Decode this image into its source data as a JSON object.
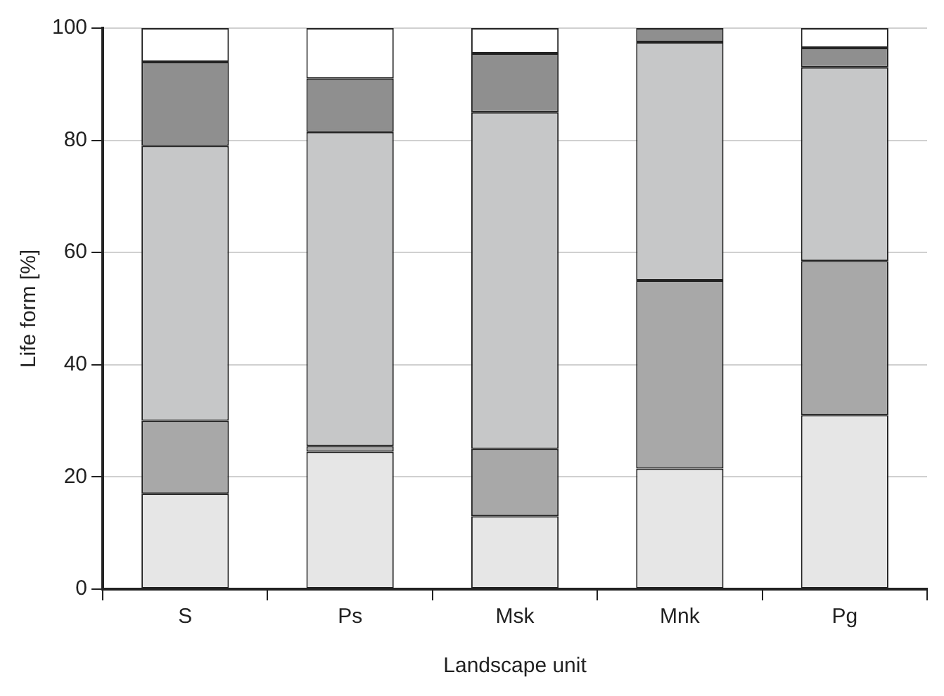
{
  "chart_data": {
    "type": "bar",
    "stacked": true,
    "xlabel": "Landscape unit",
    "ylabel": "Life form [%]",
    "categories": [
      "S",
      "Ps",
      "Msk",
      "Mnk",
      "Pg"
    ],
    "series": [
      {
        "color": "#e6e6e6",
        "values": [
          17,
          24.5,
          13,
          21.5,
          31
        ]
      },
      {
        "color": "#a8a8a8",
        "values": [
          13,
          1,
          12,
          33.5,
          27.5
        ]
      },
      {
        "color": "#c6c7c8",
        "values": [
          49,
          56,
          60,
          42.5,
          34.5
        ]
      },
      {
        "color": "#8f8f8f",
        "values": [
          15,
          9.5,
          10.5,
          2.5,
          3.5
        ]
      },
      {
        "color": "#ffffff",
        "values": [
          6,
          9,
          4.5,
          0,
          3.5
        ]
      }
    ],
    "ylim": [
      0,
      100
    ],
    "yticks": [
      0,
      20,
      40,
      60,
      80,
      100
    ],
    "grid": "y",
    "legend": false
  }
}
